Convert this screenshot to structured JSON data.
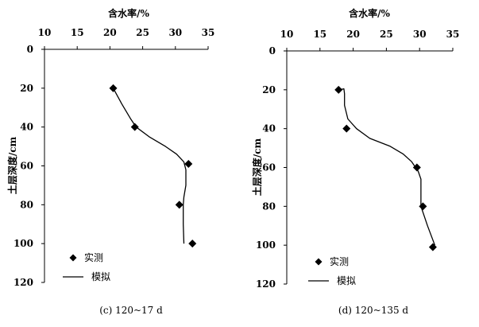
{
  "chart_data": [
    {
      "type": "scatter",
      "xlabel": "含水率/%",
      "ylabel": "土层深度/cm",
      "xlim": [
        10,
        35
      ],
      "ylim": [
        0,
        120
      ],
      "y_inverted": true,
      "x_axis_position": "top",
      "x_ticks": [
        10,
        15,
        20,
        25,
        30,
        35
      ],
      "y_ticks": [
        0,
        20,
        40,
        60,
        80,
        100,
        120
      ],
      "caption": "(c) 120~17 d",
      "legend": {
        "position": "bottom-left",
        "measured": "实测",
        "simulated": "模拟"
      },
      "series": [
        {
          "name": "实测",
          "kind": "markers",
          "marker": "diamond",
          "points": [
            [
              20.5,
              20
            ],
            [
              23.8,
              40
            ],
            [
              32.0,
              59
            ],
            [
              30.6,
              80
            ],
            [
              32.6,
              100
            ]
          ]
        },
        {
          "name": "模拟",
          "kind": "line",
          "points": [
            [
              20.5,
              20
            ],
            [
              21.8,
              28
            ],
            [
              23.2,
              36
            ],
            [
              24.0,
              40
            ],
            [
              26.0,
              45
            ],
            [
              28.5,
              50
            ],
            [
              30.2,
              54
            ],
            [
              31.3,
              58
            ],
            [
              31.6,
              62
            ],
            [
              31.6,
              70
            ],
            [
              31.3,
              76
            ],
            [
              31.2,
              80
            ],
            [
              31.2,
              90
            ],
            [
              31.3,
              100
            ]
          ]
        }
      ]
    },
    {
      "type": "scatter",
      "xlabel": "含水率/%",
      "ylabel": "土层深度/cm",
      "xlim": [
        10,
        35
      ],
      "ylim": [
        0,
        120
      ],
      "y_inverted": true,
      "x_axis_position": "top",
      "x_ticks": [
        10,
        15,
        20,
        25,
        30,
        35
      ],
      "y_ticks": [
        0,
        20,
        40,
        60,
        80,
        100,
        120
      ],
      "caption": "(d) 120~135 d",
      "legend": {
        "position": "bottom-left",
        "measured": "实测",
        "simulated": "模拟"
      },
      "series": [
        {
          "name": "实测",
          "kind": "markers",
          "marker": "diamond",
          "points": [
            [
              17.8,
              20
            ],
            [
              19.0,
              40
            ],
            [
              29.6,
              60
            ],
            [
              30.5,
              80
            ],
            [
              32.0,
              101
            ]
          ]
        },
        {
          "name": "模拟",
          "kind": "line",
          "points": [
            [
              18.0,
              20
            ],
            [
              18.6,
              19.5
            ],
            [
              18.7,
              22
            ],
            [
              18.7,
              28
            ],
            [
              19.2,
              35
            ],
            [
              20.5,
              40
            ],
            [
              22.5,
              45
            ],
            [
              25.5,
              49
            ],
            [
              27.5,
              53
            ],
            [
              28.8,
              57
            ],
            [
              29.8,
              62
            ],
            [
              30.2,
              66
            ],
            [
              30.2,
              80
            ],
            [
              31.2,
              90
            ],
            [
              32.3,
              100
            ]
          ]
        }
      ]
    }
  ]
}
